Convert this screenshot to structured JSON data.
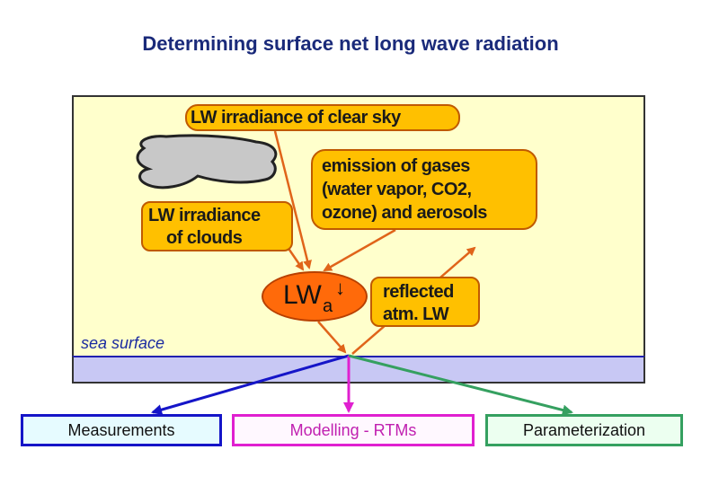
{
  "title": "Determining surface net long wave radiation",
  "boxes": {
    "clear_sky": "LW irradiance of clear sky",
    "gases": [
      "emission of gases",
      "(water vapor, CO2,",
      "ozone) and aerosols"
    ],
    "clouds": [
      "LW irradiance",
      "of clouds"
    ],
    "reflected": [
      "reflected",
      "atm. LW"
    ],
    "lwa": {
      "main": "LW",
      "sub": "a",
      "arrow": "↓"
    }
  },
  "sea_label": "sea surface",
  "outputs": {
    "measurements": "Measurements",
    "modelling": "Modelling - RTMs",
    "parameterization": "Parameterization"
  },
  "colors": {
    "panel_bg": "#ffffcc",
    "sea": "#c8c8f4",
    "orange_box": "#ffc000",
    "lwa_fill": "#ff6a0a",
    "arrow_orange": "#e0641a",
    "measurements_arrow": "#1515c8",
    "modelling_arrow": "#e020d0",
    "parameterization_arrow": "#35a060",
    "cloud": "#c8c8c8"
  }
}
